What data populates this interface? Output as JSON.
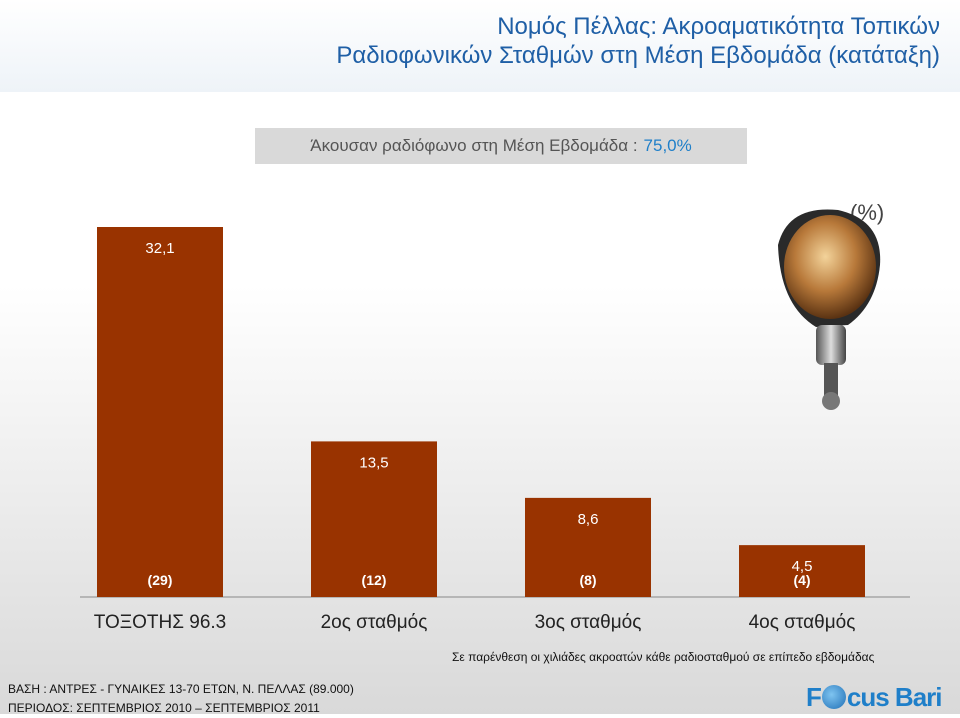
{
  "header": {
    "title_line1": "Νομός Πέλλας: Ακροαματικότητα Τοπικών",
    "title_line2": "Ραδιοφωνικών Σταθμών στη Μέση Εβδομάδα (κατάταξη)"
  },
  "subtitle": {
    "label": "Άκουσαν ραδιόφωνο στη Μέση Εβδομάδα :",
    "value": "75,0%"
  },
  "unit_label": "(%)",
  "chart_data": {
    "type": "bar",
    "categories": [
      "ΤΟΞΟΤΗΣ 96.3",
      "2ος σταθμός",
      "3ος σταθμός",
      "4ος σταθμός"
    ],
    "values": [
      32.1,
      13.5,
      8.6,
      4.5
    ],
    "value_labels": [
      "32,1",
      "13,5",
      "8,6",
      "4,5"
    ],
    "listeners_thousands_labels": [
      "(29)",
      "(12)",
      "(8)",
      "(4)"
    ],
    "ylim": [
      0,
      32.1
    ],
    "bar_color": "#993300",
    "grid": false
  },
  "footnote": "Σε παρένθεση οι χιλιάδες ακροατών κάθε ραδιοσταθμού σε επίπεδο εβδομάδας",
  "base": {
    "line1": "ΒΑΣΗ : ΑΝΤΡΕΣ - ΓΥΝΑΙΚΕΣ 13-70 ΕΤΩΝ, Ν. ΠΕΛΛΑΣ (89.000)",
    "line2": "ΠΕΡΙΟΔΟΣ: ΣΕΠΤΕΜΒΡΙΟΣ 2010 – ΣΕΠΤΕΜΒΡΙΟΣ 2011"
  },
  "logo": {
    "part1": "F",
    "part2": "cus Bari"
  },
  "icons": {
    "microphone": "microphone-icon",
    "logo": "focus-bari-logo"
  }
}
